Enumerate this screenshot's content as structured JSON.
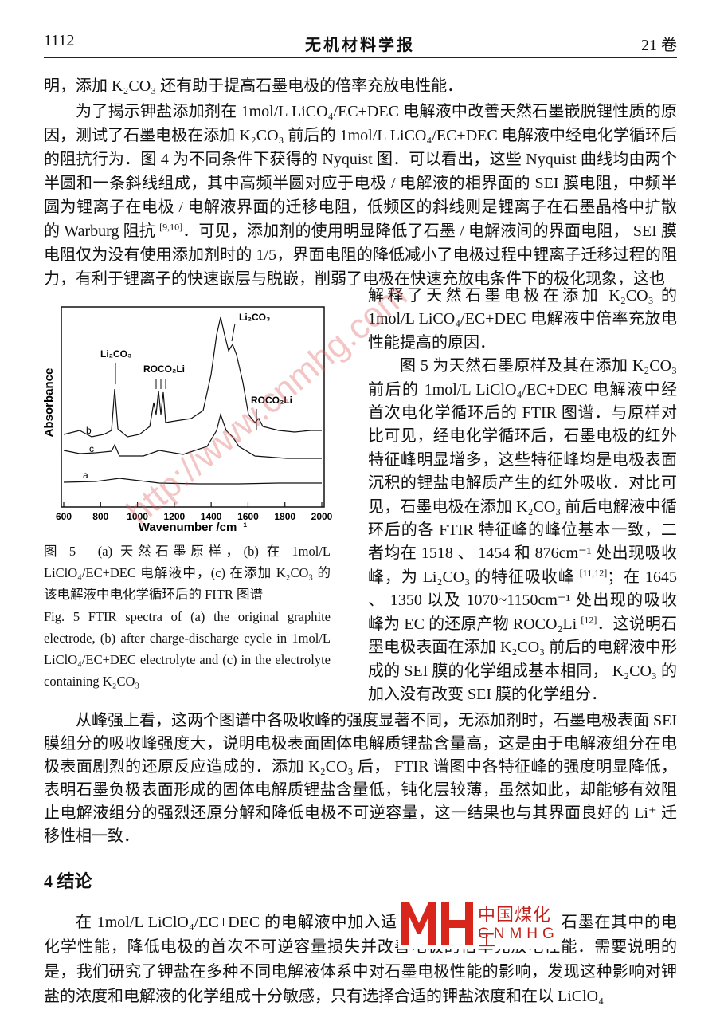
{
  "header": {
    "page": "1112",
    "journal": "无机材料学报",
    "volume": "21 卷"
  },
  "body": {
    "p0": "明，添加 K₂CO₃ 还有助于提高石墨电极的倍率充放电性能．",
    "p1a": [
      "为了揭示钾盐添加剂在 1mol/L LiCO₄/EC+DEC 电解液中改善天然石墨嵌脱锂性质的原因，测试了石墨电极在添加 K₂CO₃ 前后的 1mol/L LiCO₄/EC+DEC 电解液中经电化学循环后的阻抗行为．图 4 为不同条件下获得的 Nyquist 图．可以看出，这些 Nyquist 曲线均由两个半圆和一条斜线组成，其中高频半圆对应于电极 / 电解液的相界面的 SEI 膜电阻，中频半圆为锂离子在电极 / 电解液界面的迁移电阻，低频区的斜线则是锂离子在石墨晶格中扩散的 Warburg 阻抗 ",
      {
        "sup": "[9,10]"
      },
      "．可见，添加剂的使用明显降低了石墨 / 电解液间的界面电阻， SEI 膜电阻仅为没有使用添加剂时的 1/5，界面电阻的降低减小了电极过程中锂离子迁移过程的阻力，有利于锂离子的快速嵌层与脱嵌，削弱了电极在快速充放电条件下的极化现象，这也"
    ],
    "p1b": "解释了天然石墨电极在添加 K₂CO₃ 的 1mol/L LiCO₄/EC+DEC 电解液中倍率充放电性能提高的原因．",
    "p2": [
      "图 5 为天然石墨原样及其在添加 K₂CO₃ 前后的 1mol/L LiClO₄/EC+DEC 电解液中经首次电化学循环后的 FTIR 图谱．与原样对比可见，经电化学循环后，石墨电极的红外特征峰明显增多，这些特征峰均是电极表面沉积的锂盐电解质产生的红外吸收．对比可见，石墨电极在添加 K₂CO₃ 前后电解液中循环后的各 FTIR 特征峰的峰位基本一致，二者均在 1518 、 1454 和 876cm⁻¹ 处出现吸收峰，为 Li₂CO₃ 的特征吸收峰 ",
      {
        "sup": "[11,12]"
      },
      "；在 1645 、 1350 以及 1070~1150cm⁻¹ 处出现的吸收峰为 EC 的还原产物 ROCO₂Li ",
      {
        "sup": "[12]"
      },
      "．这说明石墨电极表面在添加 K₂CO₃ 前后的电解液中形成的 SEI 膜的化学组成基本相同， K₂CO₃ 的加入没有改变 SEI 膜的化学组分．"
    ],
    "p3": "从峰强上看，这两个图谱中各吸收峰的强度显著不同，无添加剂时，石墨电极表面 SEI 膜组分的吸收峰强度大，说明电极表面固体电解质锂盐含量高，这是由于电解液组分在电极表面剧烈的还原反应造成的．添加 K₂CO₃ 后， FTIR 谱图中各特征峰的强度明显降低，表明石墨负极表面形成的固体电解质锂盐含量低，钝化层较薄，虽然如此，却能够有效阻止电解液组分的强烈还原分解和降低电极不可逆容量，这一结果也与其界面良好的 Li⁺ 迁移性相一致．",
    "heading": "4 结论",
    "p4a": "在 1mol/L LiClO₄/EC+DEC 的电解液中加入适",
    "p4b": "石墨在其中的电化学性能，降低电极的首次不可逆容量损失并改善电极的倍率充放电性能．需要说明的是，我们研究了钾盐在多种不同电解液体系中对石墨电极性能的影响，发现这种影响对钾盐的浓度和电解液的化学组成十分敏感，只有选择合适的钾盐浓度和在以 LiClO₄"
  },
  "figure": {
    "xlabel": "Wavenumber /cm⁻¹",
    "ylabel": "Absorbance",
    "xlim": [
      600,
      2000
    ],
    "xticks": [
      600,
      800,
      1000,
      1200,
      1400,
      1600,
      1800,
      2000
    ],
    "curve_labels": [
      "b",
      "c",
      "a"
    ],
    "annotations": [
      "Li₂CO₃",
      "ROCO₂Li",
      "Li₂CO₃",
      "ROCO₂Li"
    ],
    "caption_zh": "图 5　(a) 天然石墨原样，(b) 在 1mol/L LiClO₄/EC+DEC 电解液中，(c) 在添加 K₂CO₃ 的该电解液中电化学循环后的 FITR 图谱",
    "caption_en": "Fig. 5 FTIR spectra of (a) the original graphite electrode, (b) after charge-discharge cycle in 1mol/L LiClO₄/EC+DEC electrolyte and (c) in the electrolyte containing K₂CO₃"
  },
  "watermark": "http://www.cnmhg.com",
  "logo": {
    "name": "中国煤化工",
    "code": "CNMHG"
  }
}
